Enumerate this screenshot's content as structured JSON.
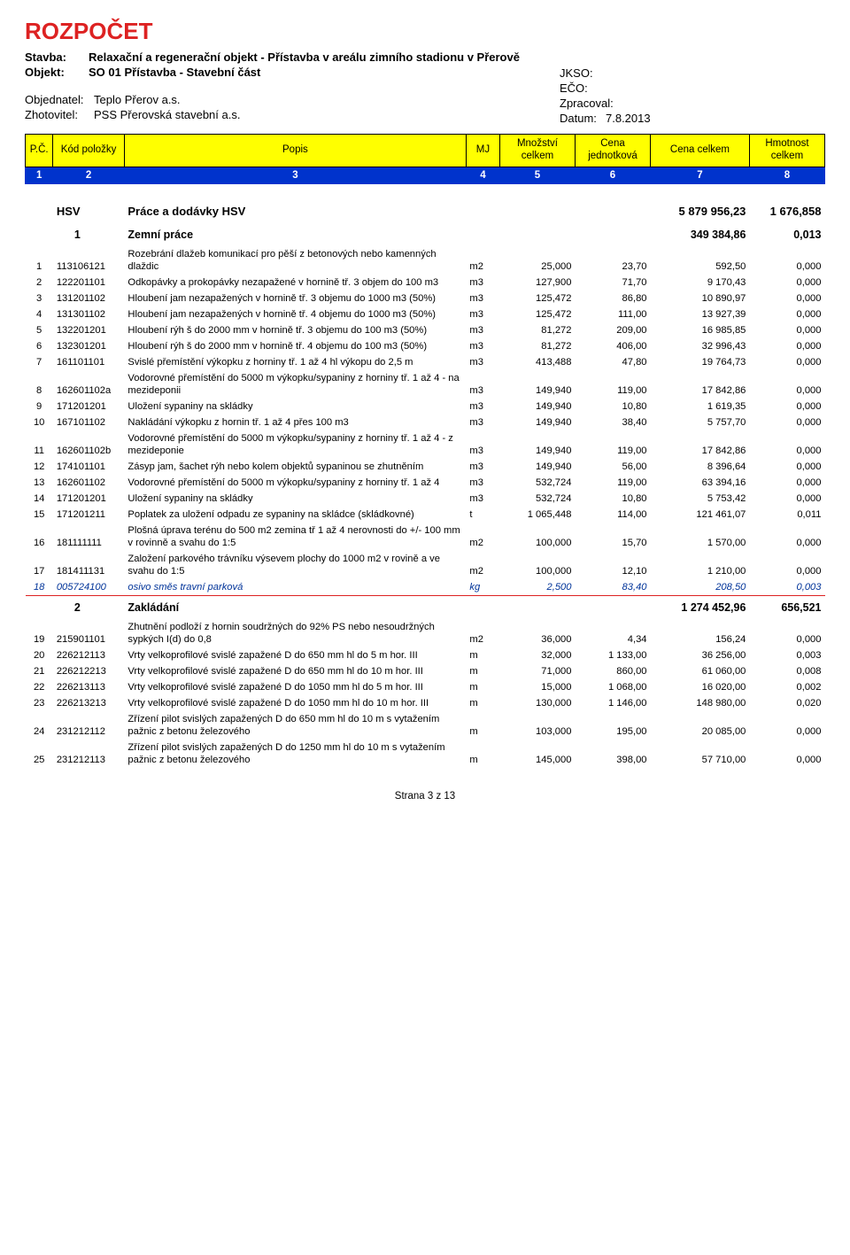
{
  "title": "ROZPOČET",
  "header": {
    "stavba_label": "Stavba:",
    "stavba": "Relaxační a regenerační objekt - Přístavba v areálu zimního stadionu v Přerově",
    "objekt_label": "Objekt:",
    "objekt": "SO 01 Přístavba - Stavební část",
    "objednatel_label": "Objednatel:",
    "objednatel": "Teplo Přerov a.s.",
    "zhotovitel_label": "Zhotovitel:",
    "zhotovitel": "PSS Přerovská stavební a.s.",
    "jkso_label": "JKSO:",
    "eco_label": "EČO:",
    "zpracoval_label": "Zpracoval:",
    "datum_label": "Datum:",
    "datum": "7.8.2013"
  },
  "thead": {
    "c1": "P.Č.",
    "c2": "Kód položky",
    "c3": "Popis",
    "c4": "MJ",
    "c5": "Množství celkem",
    "c6": "Cena jednotková",
    "c7": "Cena celkem",
    "c8": "Hmotnost celkem",
    "n1": "1",
    "n2": "2",
    "n3": "3",
    "n4": "4",
    "n5": "5",
    "n6": "6",
    "n7": "7",
    "n8": "8"
  },
  "hsv": {
    "code": "HSV",
    "label": "Práce a dodávky HSV",
    "total": "5 879 956,23",
    "mass": "1 676,858"
  },
  "s1": {
    "code": "1",
    "label": "Zemní práce",
    "total": "349 384,86",
    "mass": "0,013"
  },
  "s2": {
    "code": "2",
    "label": "Zakládání",
    "total": "1 274 452,96",
    "mass": "656,521"
  },
  "rows1": [
    {
      "pc": "1",
      "kod": "113106121",
      "pop": "Rozebrání dlažeb komunikací pro pěší z betonových nebo kamenných dlaždic",
      "mj": "m2",
      "mn": "25,000",
      "cj": "23,70",
      "cc": "592,50",
      "hm": "0,000"
    },
    {
      "pc": "2",
      "kod": "122201101",
      "pop": "Odkopávky a prokopávky nezapažené v hornině tř. 3 objem do 100 m3",
      "mj": "m3",
      "mn": "127,900",
      "cj": "71,70",
      "cc": "9 170,43",
      "hm": "0,000"
    },
    {
      "pc": "3",
      "kod": "131201102",
      "pop": "Hloubení jam nezapažených v hornině tř. 3 objemu do 1000 m3 (50%)",
      "mj": "m3",
      "mn": "125,472",
      "cj": "86,80",
      "cc": "10 890,97",
      "hm": "0,000"
    },
    {
      "pc": "4",
      "kod": "131301102",
      "pop": "Hloubení jam nezapažených v hornině tř. 4 objemu do 1000 m3 (50%)",
      "mj": "m3",
      "mn": "125,472",
      "cj": "111,00",
      "cc": "13 927,39",
      "hm": "0,000"
    },
    {
      "pc": "5",
      "kod": "132201201",
      "pop": "Hloubení rýh š do 2000 mm v hornině tř. 3 objemu do 100 m3 (50%)",
      "mj": "m3",
      "mn": "81,272",
      "cj": "209,00",
      "cc": "16 985,85",
      "hm": "0,000"
    },
    {
      "pc": "6",
      "kod": "132301201",
      "pop": "Hloubení rýh š do 2000 mm v hornině tř. 4 objemu do 100 m3 (50%)",
      "mj": "m3",
      "mn": "81,272",
      "cj": "406,00",
      "cc": "32 996,43",
      "hm": "0,000"
    },
    {
      "pc": "7",
      "kod": "161101101",
      "pop": "Svislé přemístění výkopku z horniny tř. 1 až 4 hl výkopu do 2,5 m",
      "mj": "m3",
      "mn": "413,488",
      "cj": "47,80",
      "cc": "19 764,73",
      "hm": "0,000"
    },
    {
      "pc": "8",
      "kod": "162601102a",
      "pop": "Vodorovné přemístění do 5000 m výkopku/sypaniny z horniny tř. 1 až 4 - na mezideponii",
      "mj": "m3",
      "mn": "149,940",
      "cj": "119,00",
      "cc": "17 842,86",
      "hm": "0,000"
    },
    {
      "pc": "9",
      "kod": "171201201",
      "pop": "Uložení sypaniny na skládky",
      "mj": "m3",
      "mn": "149,940",
      "cj": "10,80",
      "cc": "1 619,35",
      "hm": "0,000"
    },
    {
      "pc": "10",
      "kod": "167101102",
      "pop": "Nakládání výkopku z hornin tř. 1 až 4 přes 100 m3",
      "mj": "m3",
      "mn": "149,940",
      "cj": "38,40",
      "cc": "5 757,70",
      "hm": "0,000"
    },
    {
      "pc": "11",
      "kod": "162601102b",
      "pop": "Vodorovné přemístění do 5000 m výkopku/sypaniny z horniny tř. 1 až 4 - z mezideponie",
      "mj": "m3",
      "mn": "149,940",
      "cj": "119,00",
      "cc": "17 842,86",
      "hm": "0,000"
    },
    {
      "pc": "12",
      "kod": "174101101",
      "pop": "Zásyp jam, šachet rýh nebo kolem objektů sypaninou se zhutněním",
      "mj": "m3",
      "mn": "149,940",
      "cj": "56,00",
      "cc": "8 396,64",
      "hm": "0,000"
    },
    {
      "pc": "13",
      "kod": "162601102",
      "pop": "Vodorovné přemístění do 5000 m výkopku/sypaniny z horniny tř. 1 až 4",
      "mj": "m3",
      "mn": "532,724",
      "cj": "119,00",
      "cc": "63 394,16",
      "hm": "0,000"
    },
    {
      "pc": "14",
      "kod": "171201201",
      "pop": "Uložení sypaniny na skládky",
      "mj": "m3",
      "mn": "532,724",
      "cj": "10,80",
      "cc": "5 753,42",
      "hm": "0,000"
    },
    {
      "pc": "15",
      "kod": "171201211",
      "pop": "Poplatek za uložení odpadu ze sypaniny na skládce (skládkovné)",
      "mj": "t",
      "mn": "1 065,448",
      "cj": "114,00",
      "cc": "121 461,07",
      "hm": "0,011"
    },
    {
      "pc": "16",
      "kod": "181111111",
      "pop": "Plošná úprava terénu do 500 m2 zemina tř 1 až 4 nerovnosti do +/- 100 mm v rovinně a svahu do 1:5",
      "mj": "m2",
      "mn": "100,000",
      "cj": "15,70",
      "cc": "1 570,00",
      "hm": "0,000"
    },
    {
      "pc": "17",
      "kod": "181411131",
      "pop": "Založení parkového trávníku výsevem plochy do 1000 m2 v rovině a ve svahu do 1:5",
      "mj": "m2",
      "mn": "100,000",
      "cj": "12,10",
      "cc": "1 210,00",
      "hm": "0,000"
    },
    {
      "pc": "18",
      "kod": "005724100",
      "pop": "osivo směs travní parková",
      "mj": "kg",
      "mn": "2,500",
      "cj": "83,40",
      "cc": "208,50",
      "hm": "0,003",
      "italic": true
    }
  ],
  "rows2": [
    {
      "pc": "19",
      "kod": "215901101",
      "pop": "Zhutnění podloží z hornin soudržných do 92% PS nebo nesoudržných sypkých I(d) do 0,8",
      "mj": "m2",
      "mn": "36,000",
      "cj": "4,34",
      "cc": "156,24",
      "hm": "0,000"
    },
    {
      "pc": "20",
      "kod": "226212113",
      "pop": "Vrty velkoprofilové svislé zapažené D do 650 mm hl do 5 m hor. III",
      "mj": "m",
      "mn": "32,000",
      "cj": "1 133,00",
      "cc": "36 256,00",
      "hm": "0,003"
    },
    {
      "pc": "21",
      "kod": "226212213",
      "pop": "Vrty velkoprofilové svislé zapažené D do 650 mm hl do 10 m hor. III",
      "mj": "m",
      "mn": "71,000",
      "cj": "860,00",
      "cc": "61 060,00",
      "hm": "0,008"
    },
    {
      "pc": "22",
      "kod": "226213113",
      "pop": "Vrty velkoprofilové svislé zapažené D do 1050 mm hl do 5 m hor. III",
      "mj": "m",
      "mn": "15,000",
      "cj": "1 068,00",
      "cc": "16 020,00",
      "hm": "0,002"
    },
    {
      "pc": "23",
      "kod": "226213213",
      "pop": "Vrty velkoprofilové svislé zapažené D do 1050 mm hl do 10 m hor. III",
      "mj": "m",
      "mn": "130,000",
      "cj": "1 146,00",
      "cc": "148 980,00",
      "hm": "0,020"
    },
    {
      "pc": "24",
      "kod": "231212112",
      "pop": "Zřízení pilot svislých zapažených D do 650 mm hl do 10 m s vytažením pažnic z betonu železového",
      "mj": "m",
      "mn": "103,000",
      "cj": "195,00",
      "cc": "20 085,00",
      "hm": "0,000"
    },
    {
      "pc": "25",
      "kod": "231212113",
      "pop": "Zřízení pilot svislých zapažených D do 1250 mm hl do 10 m s vytažením pažnic z betonu železového",
      "mj": "m",
      "mn": "145,000",
      "cj": "398,00",
      "cc": "57 710,00",
      "hm": "0,000"
    }
  ],
  "footer": "Strana 3  z 13"
}
